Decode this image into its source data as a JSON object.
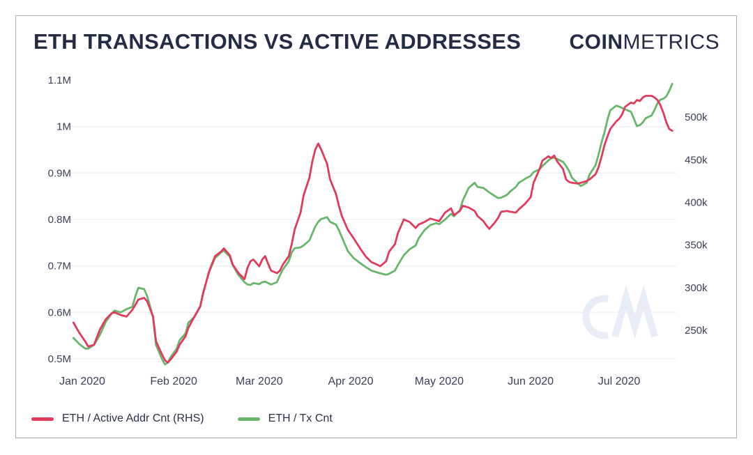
{
  "header": {
    "title": "ETH TRANSACTIONS VS ACTIVE ADDRESSES",
    "logo_bold": "COIN",
    "logo_light": "METRICS"
  },
  "colors": {
    "active_addr_line": "#e03a5c",
    "tx_line": "#68b56b",
    "gridline": "#eef0f3",
    "axis_text": "#3a4156",
    "watermark": "#e8ecf4",
    "title_text": "#242c44"
  },
  "legend": [
    {
      "label": "ETH / Active Addr Cnt (RHS)",
      "color": "#e03a5c"
    },
    {
      "label": "ETH / Tx Cnt",
      "color": "#68b56b"
    }
  ],
  "watermark": "CM",
  "chart_data": {
    "type": "line",
    "title": "ETH TRANSACTIONS VS ACTIVE ADDRESSES",
    "x": {
      "unit": "days since 2020-01-01",
      "range_days": [
        -3,
        200
      ],
      "tick_days": [
        0,
        31,
        60,
        91,
        121,
        152,
        182
      ],
      "tick_labels": [
        "Jan 2020",
        "Feb 2020",
        "Mar 2020",
        "Apr 2020",
        "May 2020",
        "Jun 2020",
        "Jul 2020"
      ]
    },
    "y_left": {
      "series": "ETH / Tx Cnt",
      "unit": "M",
      "ticks": [
        1.1,
        1.0,
        0.9,
        0.8,
        0.7,
        0.6,
        0.5
      ],
      "tick_labels": [
        "1.1M",
        "1M",
        "0.9M",
        "0.8M",
        "0.7M",
        "0.6M",
        "0.5M"
      ],
      "plot_range": [
        0.5,
        1.1
      ],
      "gridline_ticks": [
        1.0,
        0.9,
        0.8,
        0.7,
        0.6,
        0.5
      ]
    },
    "y_right": {
      "series": "ETH / Active Addr Cnt (RHS)",
      "unit": "k",
      "ticks": [
        500,
        450,
        400,
        350,
        300,
        250
      ],
      "tick_labels": [
        "500k",
        "450k",
        "400k",
        "350k",
        "300k",
        "250k"
      ],
      "plot_range": [
        216.5,
        543.4
      ]
    },
    "days": [
      -3,
      -1,
      1,
      2,
      4,
      6,
      8,
      10,
      11,
      13,
      15,
      17,
      18,
      19,
      21,
      22,
      24,
      25,
      27,
      28,
      29,
      30,
      32,
      33,
      35,
      36,
      38,
      40,
      41,
      43,
      45,
      47,
      48,
      50,
      51,
      53,
      55,
      56,
      57,
      58,
      60,
      61,
      62,
      63,
      64,
      66,
      67,
      68,
      70,
      71,
      72,
      74,
      75,
      77,
      78,
      79,
      80,
      81,
      83,
      84,
      86,
      87,
      88,
      90,
      92,
      94,
      96,
      98,
      100,
      101,
      103,
      104,
      106,
      107,
      109,
      111,
      113,
      114,
      116,
      118,
      120,
      121,
      123,
      125,
      126,
      128,
      129,
      131,
      133,
      134,
      136,
      137,
      138,
      140,
      141,
      142,
      144,
      145,
      147,
      148,
      150,
      152,
      153,
      155,
      156,
      158,
      159,
      160,
      161,
      163,
      164,
      165,
      166,
      168,
      169,
      171,
      172,
      174,
      175,
      176,
      177,
      178,
      179,
      181,
      182,
      183,
      184,
      186,
      187,
      188,
      189,
      190,
      191,
      193,
      194,
      195,
      196,
      197,
      198,
      199,
      200
    ],
    "series": [
      {
        "name": "ETH / Active Addr Cnt (RHS)",
        "axis": "right",
        "unit": "k",
        "color": "#e03a5c",
        "values": [
          259,
          247,
          237,
          231,
          233,
          251,
          263,
          270,
          271,
          268,
          266,
          274,
          280,
          286,
          288,
          284,
          266,
          237,
          222,
          215,
          212,
          216,
          225,
          233,
          243,
          253,
          266,
          278,
          294,
          319,
          337,
          342,
          346,
          338,
          327,
          317,
          310,
          323,
          331,
          333,
          325,
          333,
          337,
          328,
          320,
          317,
          320,
          327,
          337,
          351,
          368,
          388,
          408,
          429,
          448,
          462,
          469,
          462,
          445,
          427,
          410,
          396,
          384,
          368,
          358,
          347,
          337,
          330,
          327,
          325,
          331,
          342,
          351,
          364,
          380,
          377,
          370,
          374,
          377,
          381,
          379,
          378,
          388,
          393,
          385,
          390,
          396,
          394,
          390,
          384,
          378,
          373,
          369,
          377,
          382,
          389,
          390,
          389,
          388,
          392,
          398,
          406,
          423,
          439,
          449,
          454,
          452,
          455,
          448,
          439,
          427,
          424,
          423,
          422,
          423,
          425,
          427,
          433,
          441,
          453,
          467,
          477,
          486,
          495,
          498,
          503,
          512,
          517,
          516,
          520,
          519,
          523,
          525,
          525,
          523,
          520,
          514,
          505,
          494,
          486,
          484
        ]
      },
      {
        "name": "ETH / Tx Cnt",
        "axis": "left",
        "unit": "M",
        "color": "#68b56b",
        "values": [
          0.545,
          0.532,
          0.522,
          0.522,
          0.53,
          0.552,
          0.58,
          0.598,
          0.604,
          0.6,
          0.607,
          0.612,
          0.635,
          0.653,
          0.65,
          0.635,
          0.59,
          0.53,
          0.5,
          0.488,
          0.492,
          0.504,
          0.522,
          0.54,
          0.555,
          0.578,
          0.59,
          0.612,
          0.642,
          0.687,
          0.717,
          0.729,
          0.733,
          0.72,
          0.702,
          0.68,
          0.665,
          0.66,
          0.659,
          0.663,
          0.661,
          0.665,
          0.666,
          0.663,
          0.66,
          0.665,
          0.68,
          0.692,
          0.71,
          0.729,
          0.738,
          0.74,
          0.744,
          0.755,
          0.77,
          0.785,
          0.795,
          0.801,
          0.805,
          0.795,
          0.789,
          0.777,
          0.762,
          0.732,
          0.717,
          0.707,
          0.698,
          0.69,
          0.686,
          0.684,
          0.681,
          0.683,
          0.69,
          0.702,
          0.723,
          0.736,
          0.744,
          0.759,
          0.777,
          0.788,
          0.792,
          0.79,
          0.8,
          0.812,
          0.807,
          0.82,
          0.841,
          0.868,
          0.879,
          0.87,
          0.868,
          0.863,
          0.858,
          0.85,
          0.846,
          0.847,
          0.853,
          0.86,
          0.87,
          0.879,
          0.887,
          0.894,
          0.902,
          0.908,
          0.915,
          0.927,
          0.932,
          0.933,
          0.93,
          0.924,
          0.915,
          0.905,
          0.89,
          0.878,
          0.872,
          0.879,
          0.897,
          0.917,
          0.939,
          0.965,
          0.987,
          1.014,
          1.035,
          1.045,
          1.043,
          1.04,
          1.037,
          1.032,
          1.017,
          1.001,
          1.003,
          1.009,
          1.018,
          1.024,
          1.036,
          1.05,
          1.058,
          1.06,
          1.065,
          1.077,
          1.092
        ]
      }
    ]
  }
}
